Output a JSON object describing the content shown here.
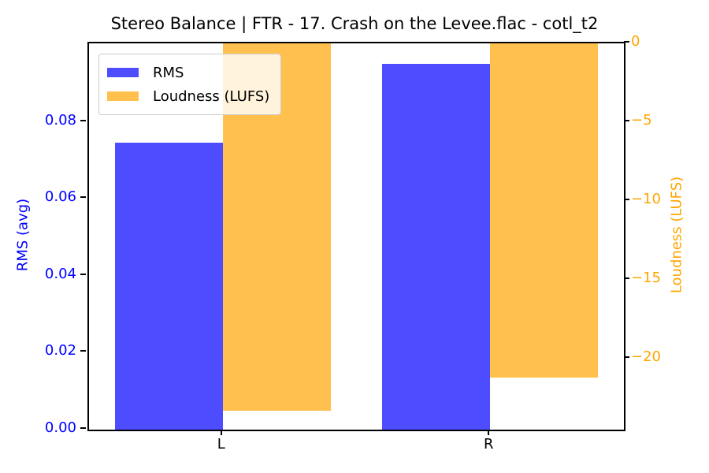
{
  "chart_data": {
    "type": "bar",
    "title": "Stereo Balance | FTR - 17. Crash on the Levee.flac - cotl_t2",
    "categories": [
      "L",
      "R"
    ],
    "series": [
      {
        "name": "RMS",
        "axis": "left",
        "color": "#4d4dff",
        "values": [
          0.0747,
          0.0952
        ]
      },
      {
        "name": "Loudness (LUFS)",
        "axis": "right",
        "color": "#ffc04d",
        "values": [
          -23.3,
          -21.2
        ]
      }
    ],
    "left_axis": {
      "label": "RMS (avg)",
      "color": "#0000ff",
      "tick_values": [
        0.0,
        0.02,
        0.04,
        0.06,
        0.08
      ],
      "tick_labels": [
        "0.00",
        "0.02",
        "0.04",
        "0.06",
        "0.08"
      ],
      "range": [
        0,
        0.1005
      ]
    },
    "right_axis": {
      "label": "Loudness (LUFS)",
      "color": "#ffa500",
      "tick_values": [
        0,
        -5,
        -10,
        -15,
        -20
      ],
      "tick_labels": [
        "0",
        "−5",
        "−10",
        "−15",
        "−20"
      ],
      "range": [
        -24.5,
        0
      ]
    },
    "legend": {
      "location": "upper left",
      "entries": [
        "RMS",
        "Loudness (LUFS)"
      ]
    },
    "grid": false,
    "bar_width_fraction": 0.2018,
    "group_centers_fraction": [
      0.25,
      0.75
    ]
  }
}
